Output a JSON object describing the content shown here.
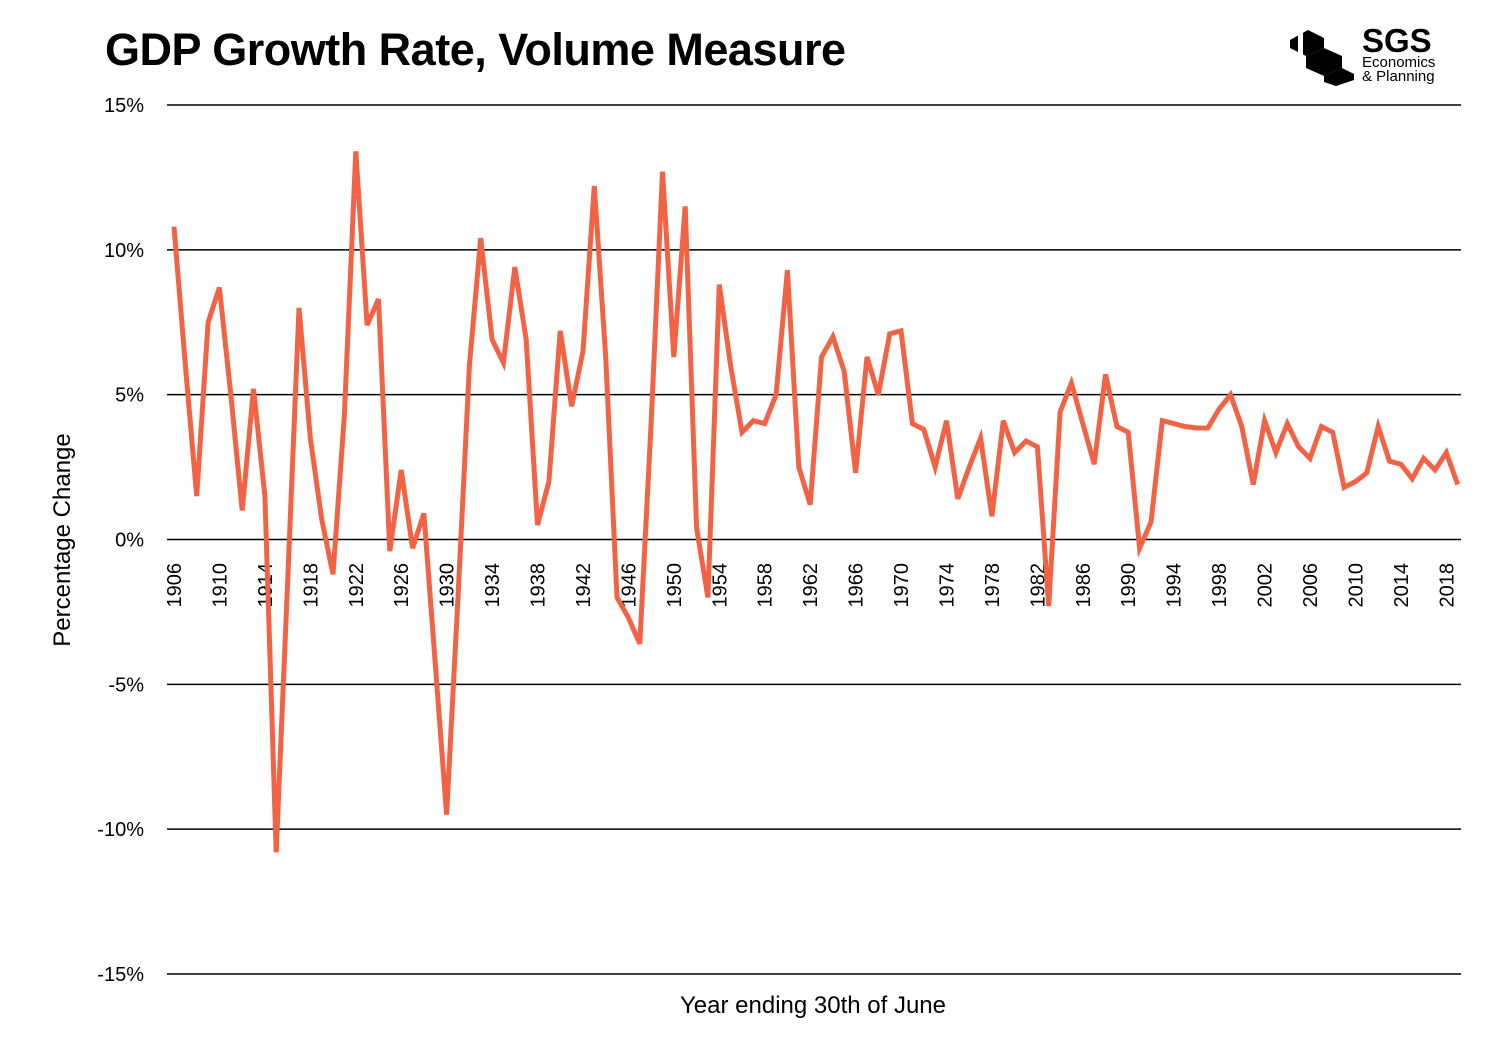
{
  "chart_data": {
    "type": "line",
    "title": "GDP Growth Rate, Volume Measure",
    "xlabel": "Year ending 30th of June",
    "ylabel": "Percentage Change",
    "ylim": [
      -15,
      15
    ],
    "yticks": [
      15,
      10,
      5,
      0,
      -5,
      -10,
      -15
    ],
    "ytick_labels": [
      "15%",
      "10%",
      "5%",
      "0%",
      "-5%",
      "-10%",
      "-15%"
    ],
    "xtick_labels": [
      "1906",
      "1910",
      "1914",
      "1918",
      "1922",
      "1926",
      "1930",
      "1934",
      "1938",
      "1942",
      "1946",
      "1950",
      "1954",
      "1958",
      "1962",
      "1966",
      "1970",
      "1974",
      "1978",
      "1982",
      "1986",
      "1990",
      "1994",
      "1998",
      "2002",
      "2006",
      "2010",
      "2014",
      "2018"
    ],
    "grid": "horizontal",
    "line_color": "#f26345",
    "x_start": 1906,
    "values": [
      10.8,
      6.0,
      1.5,
      7.5,
      8.7,
      5.0,
      1.0,
      5.2,
      1.5,
      -10.8,
      -1.5,
      8.0,
      3.5,
      0.7,
      -1.2,
      4.3,
      13.4,
      7.4,
      8.3,
      -0.4,
      2.4,
      -0.3,
      0.9,
      -4.3,
      -9.5,
      -2.0,
      6.0,
      10.4,
      6.9,
      6.1,
      9.4,
      6.9,
      0.5,
      2.0,
      7.2,
      4.6,
      6.5,
      12.2,
      6.3,
      -2.0,
      -2.7,
      -3.6,
      4.0,
      12.7,
      6.3,
      11.5,
      0.4,
      -2.0,
      8.8,
      6.0,
      3.7,
      4.1,
      4.0,
      5.0,
      9.3,
      2.5,
      1.2,
      6.3,
      7.0,
      5.8,
      2.3,
      6.3,
      5.0,
      7.1,
      7.2,
      4.0,
      3.8,
      2.5,
      4.1,
      1.4,
      2.5,
      3.5,
      0.8,
      4.1,
      3.0,
      3.4,
      3.2,
      -2.3,
      4.4,
      5.4,
      4.0,
      2.6,
      5.7,
      3.9,
      3.7,
      -0.3,
      0.6,
      4.1,
      4.0,
      3.9,
      3.85,
      3.85,
      4.5,
      5.0,
      3.9,
      1.9,
      4.1,
      3.0,
      4.0,
      3.2,
      2.8,
      3.9,
      3.7,
      1.8,
      2.0,
      2.3,
      3.9,
      2.7,
      2.6,
      2.1,
      2.8,
      2.4,
      3.0,
      1.9
    ]
  },
  "logo": {
    "name": "SGS",
    "subtitle_1": "Economics",
    "subtitle_2": "& Planning"
  }
}
